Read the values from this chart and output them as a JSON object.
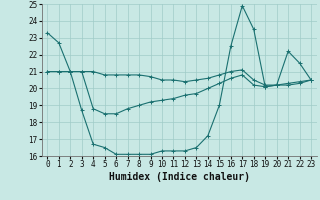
{
  "xlabel": "Humidex (Indice chaleur)",
  "bg_color": "#c8e8e4",
  "grid_color": "#a0ccc8",
  "line_color": "#1a7070",
  "spine_color": "#707070",
  "xlim": [
    -0.5,
    23.5
  ],
  "ylim": [
    16,
    25
  ],
  "yticks": [
    16,
    17,
    18,
    19,
    20,
    21,
    22,
    23,
    24,
    25
  ],
  "xticks": [
    0,
    1,
    2,
    3,
    4,
    5,
    6,
    7,
    8,
    9,
    10,
    11,
    12,
    13,
    14,
    15,
    16,
    17,
    18,
    19,
    20,
    21,
    22,
    23
  ],
  "line1_x": [
    0,
    1,
    2,
    3,
    4,
    5,
    6,
    7,
    8,
    9,
    10,
    11,
    12,
    13,
    14,
    15,
    16,
    17,
    18,
    19,
    20,
    21,
    22,
    23
  ],
  "line1_y": [
    23.3,
    22.7,
    21.0,
    18.7,
    16.7,
    16.5,
    16.1,
    16.1,
    16.1,
    16.1,
    16.3,
    16.3,
    16.3,
    16.5,
    17.2,
    19.0,
    22.5,
    24.9,
    23.5,
    20.1,
    20.2,
    22.2,
    21.5,
    20.5
  ],
  "line2_x": [
    0,
    1,
    2,
    3,
    4,
    5,
    6,
    7,
    8,
    9,
    10,
    11,
    12,
    13,
    14,
    15,
    16,
    17,
    18,
    19,
    20,
    21,
    22,
    23
  ],
  "line2_y": [
    21.0,
    21.0,
    21.0,
    21.0,
    21.0,
    20.8,
    20.8,
    20.8,
    20.8,
    20.7,
    20.5,
    20.5,
    20.4,
    20.5,
    20.6,
    20.8,
    21.0,
    21.1,
    20.5,
    20.2,
    20.2,
    20.2,
    20.3,
    20.5
  ],
  "line3_x": [
    0,
    1,
    2,
    3,
    4,
    5,
    6,
    7,
    8,
    9,
    10,
    11,
    12,
    13,
    14,
    15,
    16,
    17,
    18,
    19,
    20,
    21,
    22,
    23
  ],
  "line3_y": [
    21.0,
    21.0,
    21.0,
    21.0,
    18.8,
    18.5,
    18.5,
    18.8,
    19.0,
    19.2,
    19.3,
    19.4,
    19.6,
    19.7,
    20.0,
    20.3,
    20.6,
    20.8,
    20.2,
    20.1,
    20.2,
    20.3,
    20.4,
    20.5
  ],
  "tick_fontsize": 5.5,
  "xlabel_fontsize": 7.0,
  "marker_size": 3.5,
  "line_width": 0.8
}
